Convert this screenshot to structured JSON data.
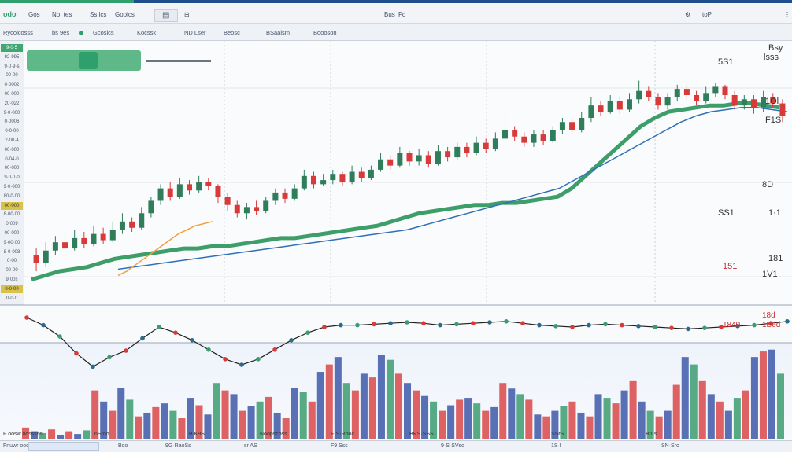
{
  "app": {
    "logo": "odo",
    "menu": [
      "Gos",
      "NoI tes",
      "Ss:lcs",
      "Goolcs"
    ],
    "top_right_labels": [
      "Bus",
      "Fc",
      "toP"
    ]
  },
  "toolbar": {
    "items": [
      "Rycolcosss",
      "bs 9es",
      "Gcoslcs",
      "Kocssk",
      "ND Lser",
      "Beosc",
      "BSaalsm",
      "Boooson"
    ]
  },
  "left_panel": {
    "values": [
      "9·0·5",
      "92·995",
      "9·0·9·s",
      "00·00",
      "0·0002",
      "00·000",
      "20·022",
      "9·0·000",
      "0·0006",
      "0·0·00",
      "2·00·4",
      "00·000",
      "0·04·0",
      "00·000",
      "9·0·0·0",
      "9·0·000",
      "80·0·00",
      "00·000",
      "8·00·00",
      "0·009",
      "00·000",
      "9·00·00",
      "8·0·008",
      "0·00",
      "00·00",
      "9·00s",
      "8·0·00",
      "0·0·0"
    ]
  },
  "chart_data": {
    "type": "candlestick",
    "candles": [
      {
        "o": 52,
        "c": 48,
        "h": 55,
        "l": 44
      },
      {
        "o": 48,
        "c": 54,
        "h": 58,
        "l": 46
      },
      {
        "o": 54,
        "c": 58,
        "h": 61,
        "l": 52
      },
      {
        "o": 58,
        "c": 55,
        "h": 62,
        "l": 53
      },
      {
        "o": 55,
        "c": 60,
        "h": 64,
        "l": 54
      },
      {
        "o": 60,
        "c": 57,
        "h": 63,
        "l": 55
      },
      {
        "o": 57,
        "c": 62,
        "h": 66,
        "l": 56
      },
      {
        "o": 62,
        "c": 59,
        "h": 65,
        "l": 57
      },
      {
        "o": 59,
        "c": 64,
        "h": 68,
        "l": 58
      },
      {
        "o": 64,
        "c": 68,
        "h": 72,
        "l": 62
      },
      {
        "o": 68,
        "c": 65,
        "h": 70,
        "l": 63
      },
      {
        "o": 65,
        "c": 72,
        "h": 75,
        "l": 64
      },
      {
        "o": 72,
        "c": 78,
        "h": 80,
        "l": 70
      },
      {
        "o": 78,
        "c": 84,
        "h": 86,
        "l": 76
      },
      {
        "o": 84,
        "c": 80,
        "h": 87,
        "l": 78
      },
      {
        "o": 80,
        "c": 86,
        "h": 89,
        "l": 79
      },
      {
        "o": 86,
        "c": 83,
        "h": 88,
        "l": 81
      },
      {
        "o": 83,
        "c": 87,
        "h": 90,
        "l": 82
      },
      {
        "o": 87,
        "c": 85,
        "h": 89,
        "l": 83
      },
      {
        "o": 85,
        "c": 80,
        "h": 86,
        "l": 77
      },
      {
        "o": 80,
        "c": 76,
        "h": 82,
        "l": 73
      },
      {
        "o": 76,
        "c": 72,
        "h": 78,
        "l": 70
      },
      {
        "o": 72,
        "c": 75,
        "h": 77,
        "l": 69
      },
      {
        "o": 75,
        "c": 73,
        "h": 78,
        "l": 71
      },
      {
        "o": 73,
        "c": 78,
        "h": 80,
        "l": 72
      },
      {
        "o": 78,
        "c": 82,
        "h": 84,
        "l": 76
      },
      {
        "o": 82,
        "c": 79,
        "h": 84,
        "l": 77
      },
      {
        "o": 79,
        "c": 84,
        "h": 86,
        "l": 78
      },
      {
        "o": 84,
        "c": 90,
        "h": 93,
        "l": 83
      },
      {
        "o": 90,
        "c": 86,
        "h": 92,
        "l": 84
      },
      {
        "o": 86,
        "c": 88,
        "h": 91,
        "l": 85
      },
      {
        "o": 88,
        "c": 91,
        "h": 93,
        "l": 86
      },
      {
        "o": 91,
        "c": 87,
        "h": 92,
        "l": 85
      },
      {
        "o": 87,
        "c": 92,
        "h": 95,
        "l": 86
      },
      {
        "o": 92,
        "c": 89,
        "h": 94,
        "l": 87
      },
      {
        "o": 89,
        "c": 93,
        "h": 95,
        "l": 88
      },
      {
        "o": 93,
        "c": 98,
        "h": 101,
        "l": 92
      },
      {
        "o": 98,
        "c": 95,
        "h": 100,
        "l": 93
      },
      {
        "o": 95,
        "c": 101,
        "h": 104,
        "l": 94
      },
      {
        "o": 101,
        "c": 97,
        "h": 102,
        "l": 95
      },
      {
        "o": 97,
        "c": 100,
        "h": 103,
        "l": 95
      },
      {
        "o": 100,
        "c": 96,
        "h": 102,
        "l": 94
      },
      {
        "o": 96,
        "c": 102,
        "h": 105,
        "l": 95
      },
      {
        "o": 102,
        "c": 99,
        "h": 104,
        "l": 97
      },
      {
        "o": 99,
        "c": 104,
        "h": 106,
        "l": 98
      },
      {
        "o": 104,
        "c": 101,
        "h": 106,
        "l": 99
      },
      {
        "o": 101,
        "c": 106,
        "h": 109,
        "l": 100
      },
      {
        "o": 106,
        "c": 103,
        "h": 108,
        "l": 101
      },
      {
        "o": 103,
        "c": 108,
        "h": 111,
        "l": 102
      },
      {
        "o": 108,
        "c": 112,
        "h": 120,
        "l": 106
      },
      {
        "o": 112,
        "c": 109,
        "h": 114,
        "l": 107
      },
      {
        "o": 109,
        "c": 106,
        "h": 111,
        "l": 104
      },
      {
        "o": 106,
        "c": 110,
        "h": 112,
        "l": 104
      },
      {
        "o": 110,
        "c": 107,
        "h": 112,
        "l": 105
      },
      {
        "o": 107,
        "c": 112,
        "h": 114,
        "l": 106
      },
      {
        "o": 112,
        "c": 116,
        "h": 118,
        "l": 110
      },
      {
        "o": 116,
        "c": 112,
        "h": 118,
        "l": 110
      },
      {
        "o": 112,
        "c": 118,
        "h": 121,
        "l": 111
      },
      {
        "o": 118,
        "c": 124,
        "h": 128,
        "l": 116
      },
      {
        "o": 124,
        "c": 121,
        "h": 126,
        "l": 119
      },
      {
        "o": 121,
        "c": 126,
        "h": 129,
        "l": 120
      },
      {
        "o": 126,
        "c": 122,
        "h": 128,
        "l": 120
      },
      {
        "o": 122,
        "c": 127,
        "h": 130,
        "l": 121
      },
      {
        "o": 127,
        "c": 131,
        "h": 136,
        "l": 125
      },
      {
        "o": 131,
        "c": 128,
        "h": 133,
        "l": 126
      },
      {
        "o": 128,
        "c": 124,
        "h": 130,
        "l": 122
      },
      {
        "o": 124,
        "c": 128,
        "h": 130,
        "l": 122
      },
      {
        "o": 128,
        "c": 132,
        "h": 134,
        "l": 126
      },
      {
        "o": 132,
        "c": 129,
        "h": 134,
        "l": 127
      },
      {
        "o": 129,
        "c": 126,
        "h": 131,
        "l": 124
      },
      {
        "o": 126,
        "c": 130,
        "h": 133,
        "l": 125
      },
      {
        "o": 130,
        "c": 133,
        "h": 135,
        "l": 128
      },
      {
        "o": 133,
        "c": 129,
        "h": 134,
        "l": 127
      },
      {
        "o": 129,
        "c": 124,
        "h": 131,
        "l": 122
      },
      {
        "o": 124,
        "c": 127,
        "h": 129,
        "l": 122
      },
      {
        "o": 127,
        "c": 123,
        "h": 129,
        "l": 120
      },
      {
        "o": 123,
        "c": 128,
        "h": 131,
        "l": 121
      },
      {
        "o": 128,
        "c": 125,
        "h": 130,
        "l": 123
      },
      {
        "o": 125,
        "c": 119,
        "h": 127,
        "l": 116
      }
    ],
    "ma_green": [
      40,
      42,
      44,
      45,
      46,
      48,
      50,
      51,
      52,
      53,
      54,
      55,
      55,
      56,
      56,
      57,
      58,
      59,
      60,
      60,
      61,
      62,
      63,
      64,
      65,
      66,
      68,
      70,
      72,
      73,
      74,
      75,
      76,
      76,
      77,
      77,
      78,
      79,
      80,
      84,
      90,
      96,
      102,
      108,
      114,
      118,
      121,
      122,
      123,
      124,
      124,
      125,
      125,
      124,
      123
    ],
    "ma_blue": [
      45,
      46,
      47,
      48,
      49,
      50,
      51,
      52,
      53,
      54,
      55,
      56,
      57,
      58,
      59,
      60,
      61,
      62,
      63,
      64,
      66,
      68,
      70,
      72,
      74,
      76,
      78,
      80,
      82,
      84,
      88,
      92,
      96,
      100,
      104,
      108,
      112,
      116,
      119,
      121,
      122,
      123,
      123,
      122,
      121
    ],
    "ma_orange": [
      42,
      44,
      47,
      50,
      53,
      56,
      59,
      62,
      64,
      66,
      67,
      68
    ],
    "right_labels": [
      "5S1",
      "Bsy",
      "lsss",
      "1Ol",
      "F1S",
      "8D",
      "SS1",
      "1·1",
      "151",
      "181",
      "1V1"
    ],
    "osc_values": [
      30,
      22,
      10,
      -8,
      -22,
      -12,
      -5,
      8,
      20,
      14,
      6,
      -4,
      -14,
      -20,
      -14,
      -4,
      6,
      14,
      20,
      22,
      22,
      23,
      24,
      25,
      24,
      22,
      23,
      24,
      25,
      26,
      24,
      22,
      21,
      20,
      22,
      23,
      22,
      21,
      20,
      19,
      18,
      19,
      20,
      21,
      22,
      24,
      26
    ],
    "osc_labels": [
      "1840",
      "18d",
      "1Bed"
    ],
    "volume": [
      12,
      8,
      6,
      10,
      4,
      8,
      5,
      9,
      52,
      40,
      30,
      55,
      42,
      24,
      28,
      34,
      38,
      30,
      22,
      44,
      36,
      26,
      60,
      52,
      48,
      30,
      35,
      40,
      45,
      28,
      22,
      55,
      50,
      40,
      72,
      80,
      88,
      60,
      52,
      70,
      66,
      90,
      85,
      70,
      60,
      52,
      46,
      40,
      30,
      36,
      42,
      44,
      38,
      30,
      34,
      60,
      54,
      48,
      42,
      26,
      24,
      30,
      35,
      40,
      28,
      24,
      48,
      44,
      38,
      52,
      62,
      40,
      30,
      24,
      30,
      58,
      88,
      80,
      62,
      48,
      40,
      30,
      44,
      52,
      88,
      94,
      96,
      70
    ],
    "axis_bottom_labels": [
      "F oosw oosssss",
      "6Sroo",
      "B K9S",
      "Noopscoss",
      "F·S·Rooc",
      "BRS·SSS",
      "SSrS",
      "Bn·s"
    ]
  },
  "colors": {
    "up": "#2f7d5b",
    "down": "#d83a3a",
    "ma_green": "#3e9e6a",
    "ma_blue": "#3070b8",
    "ma_orange": "#f0a040",
    "vol_red": "#d94848",
    "vol_blue": "#3d58a8",
    "vol_green": "#3c9c70"
  },
  "status": {
    "left": "Fnuwr oooss",
    "segments": [
      "Bqo",
      "9G·RaoSs",
      "sr AS",
      "F9 Sss",
      "9·S·SVso",
      "1S·l",
      "SN·Sro"
    ]
  }
}
